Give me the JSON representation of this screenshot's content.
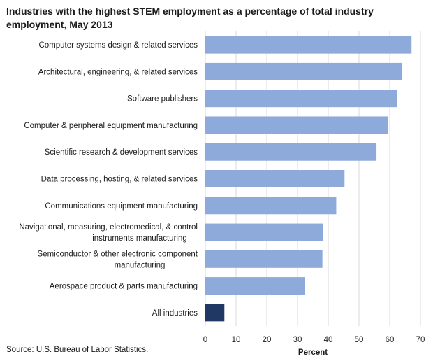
{
  "chart_data": {
    "type": "bar",
    "orientation": "horizontal",
    "title": "Industries with the highest STEM employment as a percentage of total industry employment, May 2013",
    "xlabel": "Percent",
    "ylabel": "",
    "xlim": [
      0,
      70
    ],
    "xticks": [
      0,
      10,
      20,
      30,
      40,
      50,
      60,
      70
    ],
    "grid": true,
    "categories": [
      "Computer systems design & related services",
      "Architectural, engineering, & related services",
      "Software publishers",
      "Computer & peripheral equipment manufacturing",
      "Scientific research & development services",
      "Data processing, hosting, & related services",
      "Communications equipment manufacturing",
      "Navigational, measuring, electromedical, & control instruments manufacturing",
      "Semiconductor & other electronic component manufacturing",
      "Aerospace product & parts manufacturing",
      "All industries"
    ],
    "category_lines": [
      [
        "Computer systems design & related services"
      ],
      [
        "Architectural, engineering, & related services"
      ],
      [
        "Software publishers"
      ],
      [
        "Computer & peripheral equipment manufacturing"
      ],
      [
        "Scientific research & development services"
      ],
      [
        "Data processing, hosting, & related services"
      ],
      [
        "Communications equipment manufacturing"
      ],
      [
        "Navigational, measuring, electromedical, & control",
        "instruments manufacturing"
      ],
      [
        "Semiconductor & other electronic component",
        "manufacturing"
      ],
      [
        "Aerospace product & parts manufacturing"
      ],
      [
        "All industries"
      ]
    ],
    "values": [
      67.1,
      63.9,
      62.4,
      59.5,
      55.7,
      45.3,
      42.6,
      38.2,
      38.1,
      32.5,
      6.2
    ],
    "colors": {
      "bar": "#8eaadb",
      "highlight": "#1f3864",
      "grid": "#d9d9d9"
    },
    "highlight_index": 10
  },
  "source": "Source: U.S. Bureau of Labor Statistics."
}
